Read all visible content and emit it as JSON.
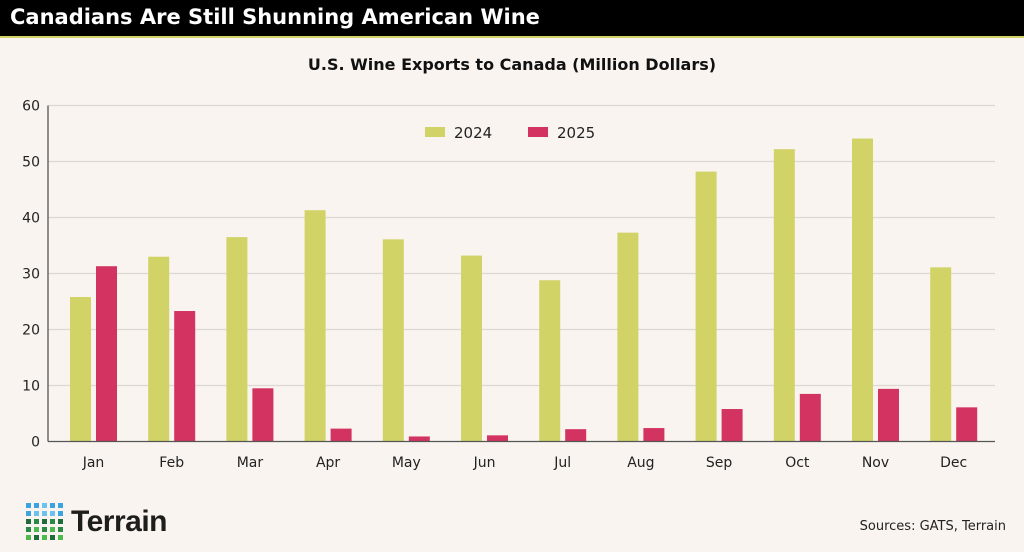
{
  "header": {
    "title": "Canadians Are Still Shunning American Wine"
  },
  "source": "Sources: GATS, Terrain",
  "logo": {
    "text": "Terrain"
  },
  "chart_data": {
    "type": "bar",
    "title": "U.S. Wine Exports to Canada (Million Dollars)",
    "xlabel": "",
    "ylabel": "",
    "ylim": [
      0,
      60
    ],
    "yticks": [
      0,
      10,
      20,
      30,
      40,
      50,
      60
    ],
    "grid": true,
    "legend": "top-center",
    "categories": [
      "Jan",
      "Feb",
      "Mar",
      "Apr",
      "May",
      "Jun",
      "Jul",
      "Aug",
      "Sep",
      "Oct",
      "Nov",
      "Dec"
    ],
    "series": [
      {
        "name": "2024",
        "color": "#d1d366",
        "values": [
          25.8,
          33.0,
          36.5,
          41.3,
          36.1,
          33.2,
          28.8,
          37.3,
          48.2,
          52.2,
          54.1,
          31.1
        ]
      },
      {
        "name": "2025",
        "color": "#d23360",
        "values": [
          31.3,
          23.3,
          9.5,
          2.3,
          0.9,
          1.1,
          2.2,
          2.4,
          5.8,
          8.5,
          9.4,
          6.1
        ]
      }
    ]
  }
}
